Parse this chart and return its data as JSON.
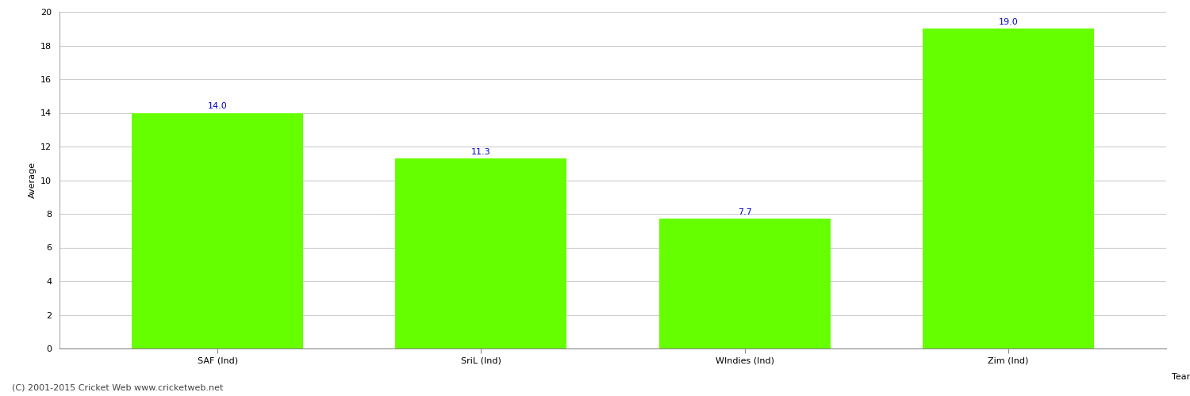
{
  "categories": [
    "SAF (Ind)",
    "SriL (Ind)",
    "WIndies (Ind)",
    "Zim (Ind)"
  ],
  "values": [
    14.0,
    11.3,
    7.7,
    19.0
  ],
  "bar_color": "#66ff00",
  "bar_edge_color": "#66ff00",
  "xlabel": "Team",
  "ylabel": "Average",
  "ylim": [
    0,
    20
  ],
  "yticks": [
    0,
    2,
    4,
    6,
    8,
    10,
    12,
    14,
    16,
    18,
    20
  ],
  "label_color": "#0000cc",
  "label_fontsize": 8,
  "axis_label_fontsize": 8,
  "tick_fontsize": 8,
  "grid_color": "#cccccc",
  "background_color": "#ffffff",
  "footer_text": "(C) 2001-2015 Cricket Web www.cricketweb.net",
  "footer_fontsize": 8,
  "footer_color": "#444444"
}
